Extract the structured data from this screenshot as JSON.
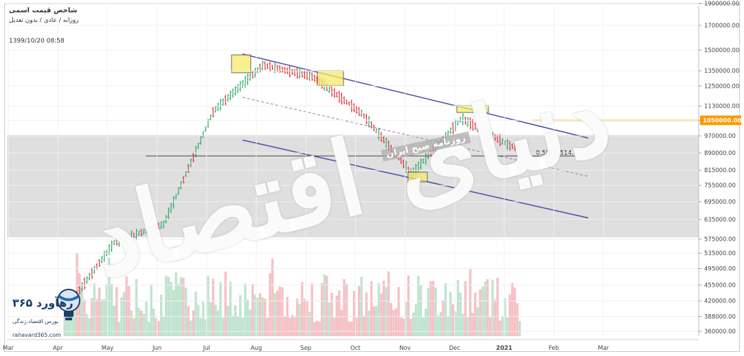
{
  "header": {
    "title": "شاخص قیمت اسمی",
    "subtitle": "روزانه / عادی / بدون تعدیل",
    "timestamp": "1399/10/20 08:58"
  },
  "colors": {
    "up": "#2ea86a",
    "down": "#e2333b",
    "vol_up": "#bfe3cf",
    "vol_down": "#f6c0c4",
    "channel": "#5054a6",
    "midline": "#a070b0",
    "level": "#ff9800",
    "fib": "#333333",
    "highlight_fill": "#f5e96b",
    "highlight_stroke": "#444444",
    "band": "#d9d9d9"
  },
  "watermark": {
    "main": "دنیای اقتصاد",
    "sub": "روزنامه صبح ایران"
  },
  "logo": {
    "name": "رهآورد ۳۶۵",
    "tagline": "بورس.اقتصاد.زندگی",
    "url": "rahavard365.com"
  },
  "chart_data": {
    "type": "line",
    "title": "شاخص قیمت اسمی",
    "price_axis": {
      "labels": [
        "1900000.00",
        "1700000.00",
        "1500000.00",
        "1350000.00",
        "1250000.00",
        "1130000.00",
        "1050000.00",
        "970000.00",
        "890000.00",
        "815000.00",
        "755000.00",
        "695000.00",
        "635000.00",
        "575000.00",
        "535000.00",
        "495000.00",
        "455000.00",
        "420000.00",
        "388000.00",
        "360000.00"
      ],
      "current_value": "1050000.00",
      "scale": "log"
    },
    "time_axis": {
      "labels": [
        "Mar",
        "Apr",
        "May",
        "Jun",
        "Jul",
        "Aug",
        "Sep",
        "Oct",
        "Nov",
        "Dec",
        "2021",
        "Feb",
        "Mar"
      ]
    },
    "series": [
      {
        "x": [
          "Apr",
          "May",
          "Jun",
          "Jul",
          "Aug",
          "Sep",
          "Oct",
          "Nov",
          "Dec",
          "2021"
        ],
        "values": [
          400000,
          565000,
          620000,
          1100000,
          1390000,
          1310000,
          1085000,
          800000,
          1060000,
          920000
        ]
      }
    ],
    "annotations": {
      "horizontal_level": 1050000,
      "fib_label": "0.5(876514.60)",
      "fib_value": 876514.6,
      "channel_lines": [
        {
          "name": "upper",
          "from": [
            "Aug",
            1470000
          ],
          "to": [
            "Feb",
            960000
          ]
        },
        {
          "name": "lower",
          "from": [
            "Aug",
            950000
          ],
          "to": [
            "Feb",
            640000
          ]
        },
        {
          "name": "middle",
          "from": [
            "Aug",
            1180000
          ],
          "to": [
            "Feb",
            790000
          ]
        }
      ]
    }
  }
}
